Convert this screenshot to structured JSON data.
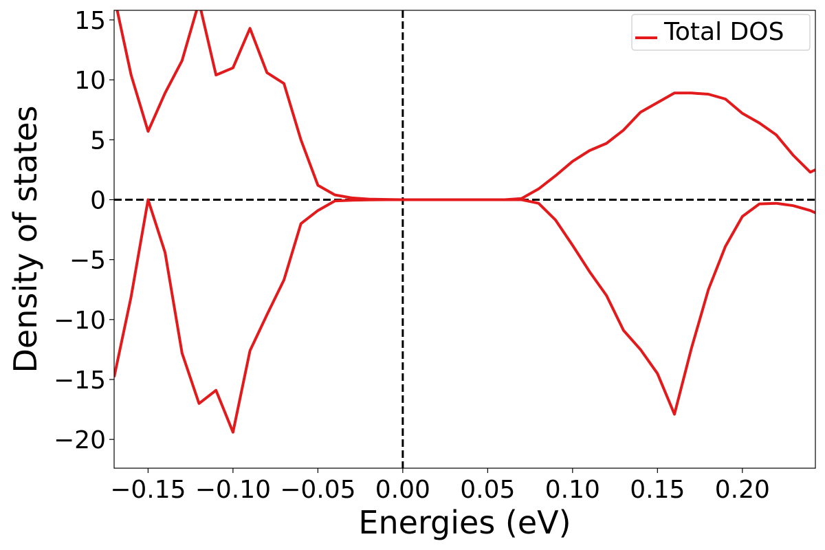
{
  "chart_data": {
    "type": "line",
    "title": "",
    "xlabel": "Energies (eV)",
    "ylabel": "Density of states",
    "xlim": [
      -0.17,
      0.243
    ],
    "ylim": [
      -22.4,
      15.8
    ],
    "grid": false,
    "legend_position": "top-right",
    "colors": {
      "line": "#e31a1c",
      "reference": "#000000"
    },
    "x_ticks": [
      {
        "value": -0.15,
        "label": "−0.15"
      },
      {
        "value": -0.1,
        "label": "−0.10"
      },
      {
        "value": -0.05,
        "label": "−0.05"
      },
      {
        "value": 0.0,
        "label": "0.00"
      },
      {
        "value": 0.05,
        "label": "0.05"
      },
      {
        "value": 0.1,
        "label": "0.10"
      },
      {
        "value": 0.15,
        "label": "0.15"
      },
      {
        "value": 0.2,
        "label": "0.20"
      }
    ],
    "y_ticks": [
      {
        "value": 15,
        "label": "15"
      },
      {
        "value": 10,
        "label": "10"
      },
      {
        "value": 5,
        "label": "5"
      },
      {
        "value": 0,
        "label": "0"
      },
      {
        "value": -5,
        "label": "−5"
      },
      {
        "value": -10,
        "label": "−10"
      },
      {
        "value": -15,
        "label": "−15"
      },
      {
        "value": -20,
        "label": "−20"
      }
    ],
    "reference_lines": {
      "x": 0,
      "y": 0
    },
    "legend_label": "Total DOS",
    "series": [
      {
        "x": [
          -0.17,
          -0.16,
          -0.15,
          -0.14,
          -0.13,
          -0.12,
          -0.11,
          -0.1,
          -0.09,
          -0.08,
          -0.07,
          -0.06,
          -0.05,
          -0.04,
          -0.03,
          -0.02,
          -0.01,
          0.0,
          0.01,
          0.02,
          0.03,
          0.04,
          0.05,
          0.06,
          0.07,
          0.08,
          0.09,
          0.1,
          0.11,
          0.12,
          0.13,
          0.14,
          0.15,
          0.16,
          0.17,
          0.18,
          0.19,
          0.2,
          0.21,
          0.22,
          0.23,
          0.24,
          0.243
        ],
        "y": [
          17.0,
          10.4,
          5.7,
          8.9,
          11.6,
          16.5,
          10.4,
          11.0,
          14.3,
          10.6,
          9.7,
          5.0,
          1.2,
          0.4,
          0.15,
          0.05,
          0.02,
          0.0,
          0.0,
          0.0,
          0.0,
          0.0,
          0.0,
          0.0,
          0.1,
          0.9,
          2.0,
          3.2,
          4.1,
          4.7,
          5.8,
          7.3,
          8.1,
          8.9,
          8.9,
          8.8,
          8.4,
          7.2,
          6.4,
          5.4,
          3.7,
          2.3,
          2.5
        ]
      },
      {
        "x": [
          -0.17,
          -0.16,
          -0.15,
          -0.14,
          -0.13,
          -0.12,
          -0.11,
          -0.1,
          -0.09,
          -0.08,
          -0.07,
          -0.06,
          -0.05,
          -0.04,
          -0.03,
          -0.02,
          -0.01,
          0.0,
          0.01,
          0.02,
          0.03,
          0.04,
          0.05,
          0.06,
          0.07,
          0.08,
          0.09,
          0.1,
          0.11,
          0.12,
          0.13,
          0.14,
          0.15,
          0.16,
          0.17,
          0.18,
          0.19,
          0.2,
          0.21,
          0.22,
          0.23,
          0.24,
          0.243
        ],
        "y": [
          -14.8,
          -8.1,
          0.0,
          -4.4,
          -12.8,
          -17.0,
          -15.9,
          -19.4,
          -12.6,
          -9.6,
          -6.7,
          -2.0,
          -0.9,
          -0.1,
          -0.05,
          -0.02,
          0.0,
          0.0,
          0.0,
          0.0,
          0.0,
          0.0,
          0.0,
          0.0,
          0.0,
          -0.3,
          -1.7,
          -3.8,
          -6.0,
          -8.0,
          -10.9,
          -12.5,
          -14.5,
          -17.9,
          -12.4,
          -7.5,
          -3.9,
          -1.4,
          -0.35,
          -0.3,
          -0.5,
          -0.9,
          -1.1
        ]
      }
    ]
  }
}
